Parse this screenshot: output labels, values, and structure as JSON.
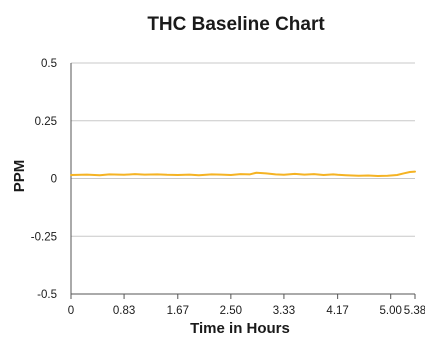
{
  "chart_data": {
    "type": "line",
    "title": "THC Baseline Chart",
    "xlabel": "Time in Hours",
    "ylabel": "PPM",
    "xlim": [
      0,
      5.38
    ],
    "ylim": [
      -0.5,
      0.5
    ],
    "x_ticks": [
      "0",
      "0.83",
      "1.67",
      "2.50",
      "3.33",
      "4.17",
      "5.00",
      "5.38"
    ],
    "y_ticks": [
      "0.5",
      "0.25",
      "0",
      "-0.25",
      "-0.5"
    ],
    "grid": "horizontal",
    "colors": {
      "line": "#f5b323",
      "grid": "#c8c8c8",
      "axis": "#555555"
    },
    "series": [
      {
        "x": [
          0,
          0.25,
          0.45,
          0.6,
          0.83,
          1.0,
          1.15,
          1.35,
          1.5,
          1.67,
          1.85,
          2.0,
          2.2,
          2.35,
          2.5,
          2.65,
          2.8,
          2.9,
          3.05,
          3.2,
          3.33,
          3.5,
          3.65,
          3.8,
          3.95,
          4.1,
          4.17,
          4.3,
          4.5,
          4.65,
          4.8,
          4.95,
          5.0,
          5.1,
          5.2,
          5.3,
          5.38
        ],
        "y": [
          0.015,
          0.017,
          0.014,
          0.018,
          0.016,
          0.019,
          0.017,
          0.018,
          0.016,
          0.015,
          0.017,
          0.014,
          0.018,
          0.017,
          0.015,
          0.019,
          0.018,
          0.025,
          0.022,
          0.018,
          0.016,
          0.02,
          0.017,
          0.019,
          0.015,
          0.018,
          0.016,
          0.014,
          0.012,
          0.013,
          0.011,
          0.012,
          0.013,
          0.015,
          0.022,
          0.028,
          0.03
        ]
      }
    ]
  }
}
